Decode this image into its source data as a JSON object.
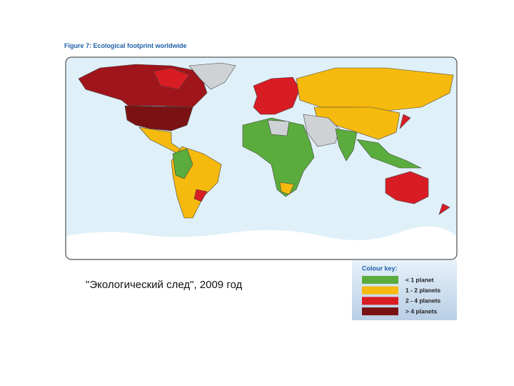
{
  "figure_title": "Figure 7: Ecological footprint worldwide",
  "caption": "\"Экологический след\", 2009 год",
  "legend": {
    "title": "Colour key:",
    "items": [
      {
        "label": "< 1 planet",
        "color": "#5aac3c"
      },
      {
        "label": "1 - 2 planets",
        "color": "#f6b90d"
      },
      {
        "label": "2 - 4 planets",
        "color": "#d81c24"
      },
      {
        "label": "> 4 planets",
        "color": "#7a1214"
      }
    ]
  }
}
